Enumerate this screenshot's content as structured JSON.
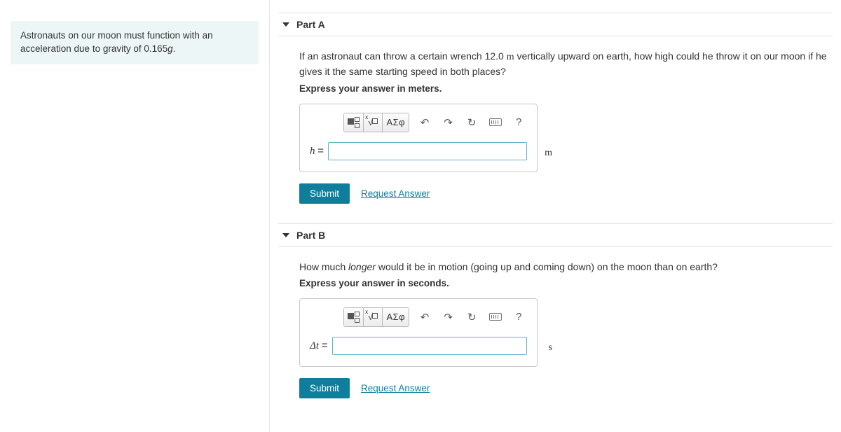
{
  "info_html": "Astronauts on our moon must function with an acceleration due to gravity of 0.165<span class='italic'>g</span>.",
  "parts": {
    "a": {
      "title": "Part A",
      "question_html": "If an astronaut can throw a certain wrench 12.0 <span class='m'>m</span> vertically upward on earth, how high could he throw it on our moon if he gives it the same starting speed in both places?",
      "instruction": "Express your answer in meters.",
      "var_html": "<span>h</span> <span class='eq'>=</span>",
      "unit": "m",
      "submit": "Submit",
      "request": "Request Answer"
    },
    "b": {
      "title": "Part B",
      "question_html": "How much <span class='longer'>longer</span> would it be in motion (going up and coming down) on the moon than on earth?",
      "instruction": "Express your answer in seconds.",
      "var_html": "Δ<span>t</span> <span class='eq'>=</span>",
      "unit": "s",
      "submit": "Submit",
      "request": "Request Answer"
    }
  },
  "toolbar": {
    "greek": "ΑΣφ",
    "help": "?"
  }
}
